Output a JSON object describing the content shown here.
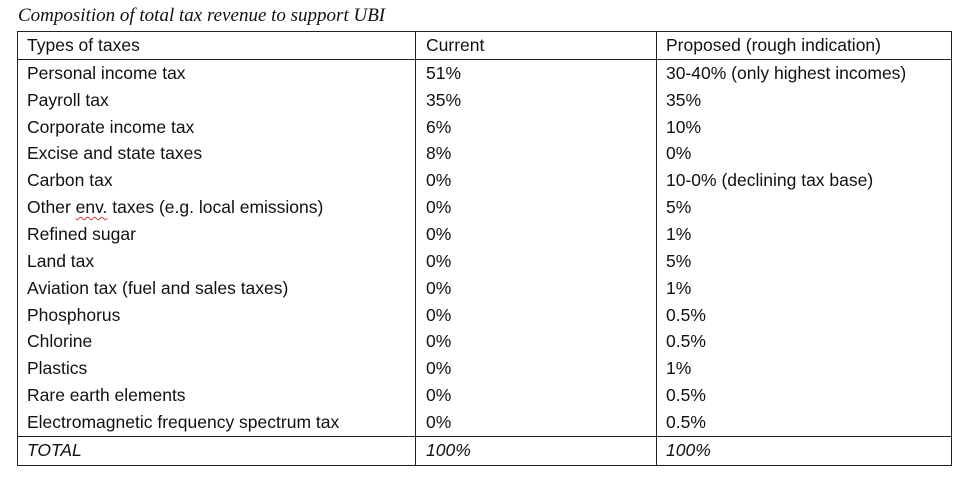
{
  "caption": "Composition of total tax revenue to support UBI",
  "table": {
    "headers": {
      "type": "Types of taxes",
      "current": "Current",
      "proposed": "Proposed (rough indication)"
    },
    "rows": [
      {
        "type": "Personal income tax",
        "current": "51%",
        "proposed": "30-40% (only highest incomes)"
      },
      {
        "type": "Payroll tax",
        "current": "35%",
        "proposed": "35%"
      },
      {
        "type": "Corporate income tax",
        "current": "6%",
        "proposed": "10%"
      },
      {
        "type": "Excise and state taxes",
        "current": "8%",
        "proposed": "0%"
      },
      {
        "type": "Carbon tax",
        "current": "0%",
        "proposed": "10-0% (declining tax base)"
      },
      {
        "type_pre": "Other ",
        "type_flag": "env.",
        "type_post": " taxes (e.g. local emissions)",
        "current": "0%",
        "proposed": "5%"
      },
      {
        "type": "Refined sugar",
        "current": "0%",
        "proposed": "1%"
      },
      {
        "type": "Land tax",
        "current": "0%",
        "proposed": "5%"
      },
      {
        "type": "Aviation tax (fuel and sales taxes)",
        "current": "0%",
        "proposed": "1%"
      },
      {
        "type": "Phosphorus",
        "current": "0%",
        "proposed": "0.5%"
      },
      {
        "type": "Chlorine",
        "current": "0%",
        "proposed": "0.5%"
      },
      {
        "type": "Plastics",
        "current": "0%",
        "proposed": "1%"
      },
      {
        "type": "Rare earth elements",
        "current": "0%",
        "proposed": "0.5%"
      },
      {
        "type": "Electromagnetic frequency spectrum tax",
        "current": "0%",
        "proposed": "0.5%"
      }
    ],
    "total": {
      "type": "TOTAL",
      "current": "100%",
      "proposed": "100%"
    }
  }
}
